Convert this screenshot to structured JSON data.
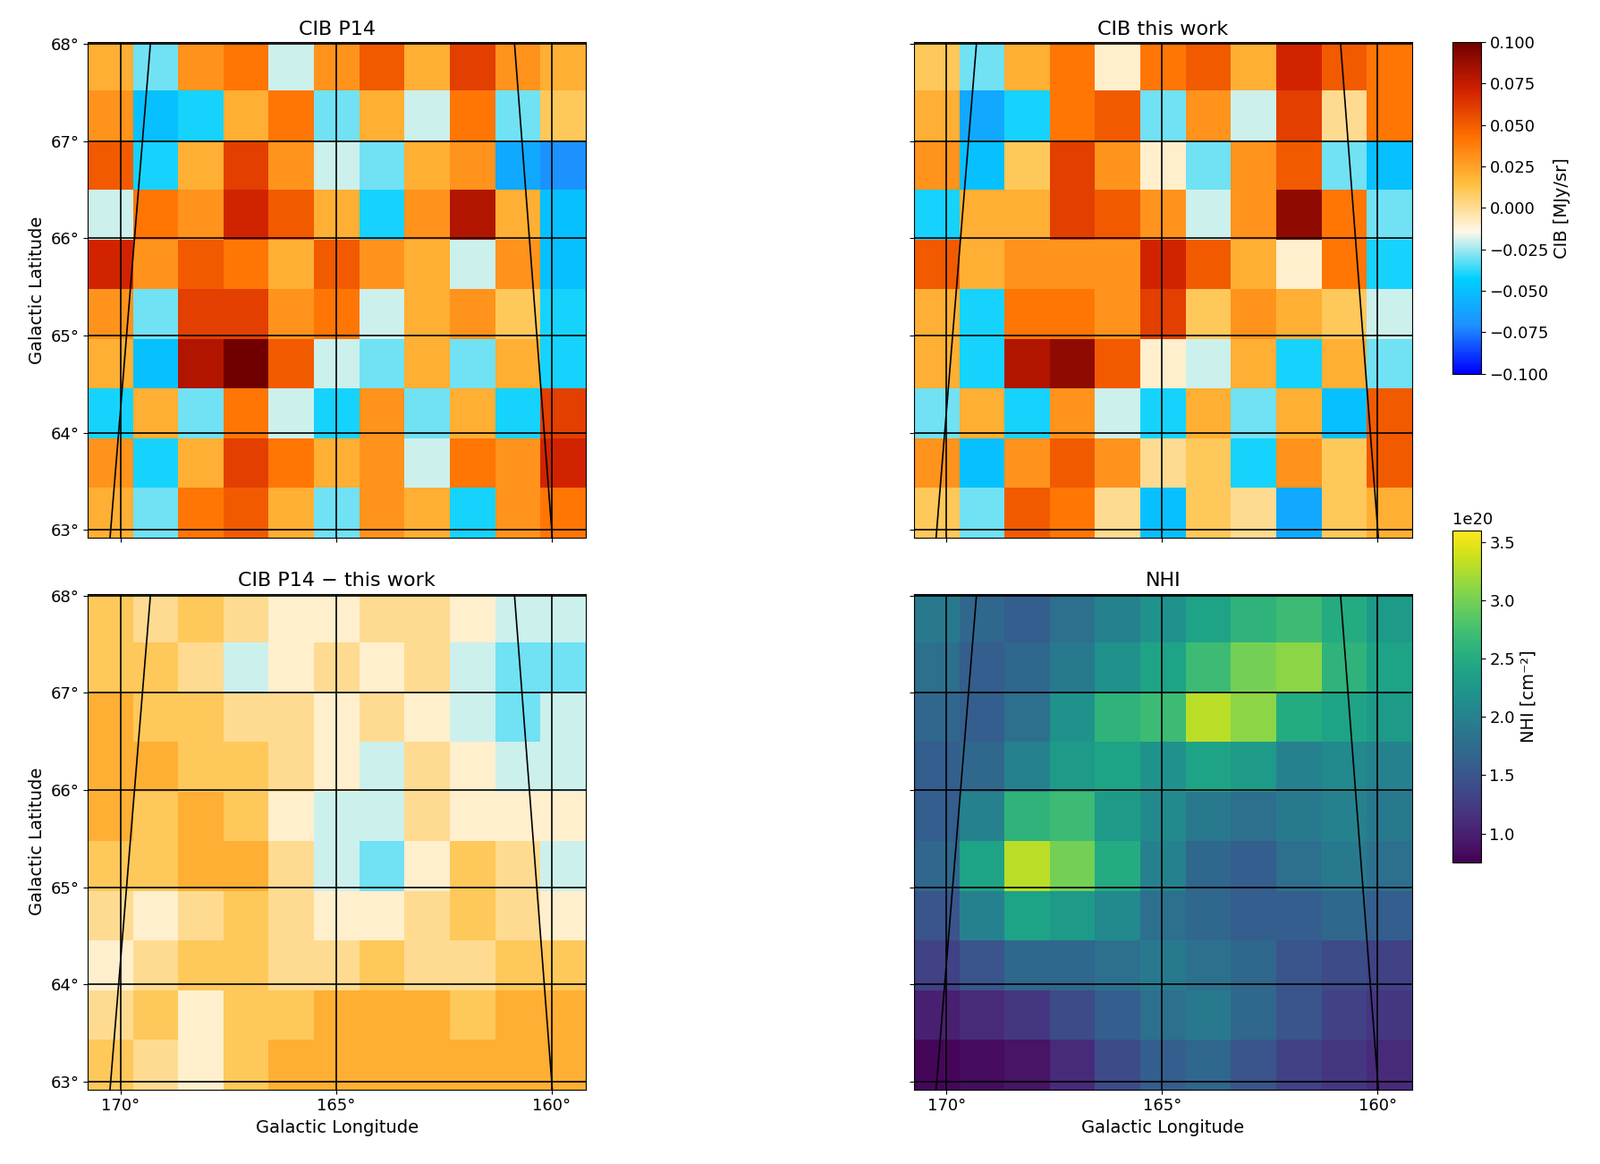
{
  "chart_data": [
    {
      "type": "heatmap",
      "title": "CIB P14",
      "ylabel": "Galactic Latitude",
      "xlim": [
        170.75,
        159.2
      ],
      "ylim": [
        62.92,
        68.02
      ],
      "xticks": [
        {
          "value": 170,
          "label": "170°"
        },
        {
          "value": 165,
          "label": "165°"
        },
        {
          "value": 160,
          "label": "160°"
        }
      ],
      "yticks": [
        {
          "value": 63,
          "label": "63°"
        },
        {
          "value": 64,
          "label": "64°"
        },
        {
          "value": 65,
          "label": "65°"
        },
        {
          "value": 66,
          "label": "66°"
        },
        {
          "value": 67,
          "label": "67°"
        },
        {
          "value": 68,
          "label": "68°"
        }
      ],
      "tick_labels": "y",
      "grid": true,
      "lines": [
        [
          [
            169.3,
            68.02
          ],
          [
            170.24,
            62.92
          ]
        ],
        [
          [
            160.86,
            68.02
          ],
          [
            159.98,
            62.92
          ]
        ]
      ],
      "color_range": [
        -0.1,
        0.1
      ],
      "cells": [
        [
          0.02,
          -0.03,
          0.03,
          0.04,
          -0.02,
          0.03,
          0.05,
          0.02,
          0.06,
          0.03,
          0.02
        ],
        [
          0.03,
          -0.05,
          -0.04,
          0.02,
          0.04,
          -0.03,
          0.02,
          -0.02,
          0.04,
          -0.03,
          0.01
        ],
        [
          0.05,
          -0.04,
          0.02,
          0.06,
          0.03,
          -0.02,
          -0.03,
          0.02,
          0.03,
          -0.06,
          -0.07
        ],
        [
          -0.02,
          0.04,
          0.03,
          0.07,
          0.05,
          0.02,
          -0.04,
          0.03,
          0.08,
          0.02,
          -0.05
        ],
        [
          0.07,
          0.03,
          0.05,
          0.04,
          0.02,
          0.05,
          0.03,
          0.02,
          -0.02,
          0.03,
          -0.05
        ],
        [
          0.03,
          -0.03,
          0.06,
          0.06,
          0.03,
          0.04,
          -0.02,
          0.02,
          0.03,
          0.01,
          -0.04
        ],
        [
          0.02,
          -0.05,
          0.08,
          0.1,
          0.05,
          -0.02,
          -0.03,
          0.02,
          -0.03,
          0.02,
          -0.04
        ],
        [
          -0.04,
          0.02,
          -0.03,
          0.04,
          -0.02,
          -0.04,
          0.03,
          -0.03,
          0.02,
          -0.04,
          0.06
        ],
        [
          0.03,
          -0.04,
          0.02,
          0.06,
          0.04,
          0.02,
          0.03,
          -0.02,
          0.04,
          0.03,
          0.07
        ],
        [
          0.02,
          -0.03,
          0.04,
          0.05,
          0.02,
          -0.03,
          0.03,
          0.02,
          -0.04,
          0.03,
          0.04
        ]
      ]
    },
    {
      "type": "heatmap",
      "title": "CIB this work",
      "xlim": [
        170.75,
        159.2
      ],
      "ylim": [
        62.92,
        68.02
      ],
      "xticks": [
        170,
        165,
        160
      ],
      "yticks": [
        63,
        64,
        65,
        66,
        67,
        68
      ],
      "tick_labels": false,
      "grid": true,
      "lines": [
        [
          [
            169.3,
            68.02
          ],
          [
            170.24,
            62.92
          ]
        ],
        [
          [
            160.86,
            68.02
          ],
          [
            159.98,
            62.92
          ]
        ]
      ],
      "colorbar": {
        "label": "CIB [MJy/sr]",
        "range": [
          -0.1,
          0.1
        ],
        "ticks": [
          {
            "value": -0.1,
            "label": "−0.100"
          },
          {
            "value": -0.075,
            "label": "−0.075"
          },
          {
            "value": -0.05,
            "label": "−0.050"
          },
          {
            "value": -0.025,
            "label": "−0.025"
          },
          {
            "value": 0,
            "label": "0.000"
          },
          {
            "value": 0.025,
            "label": "0.025"
          },
          {
            "value": 0.05,
            "label": "0.050"
          },
          {
            "value": 0.075,
            "label": "0.075"
          },
          {
            "value": 0.1,
            "label": "0.100"
          }
        ]
      },
      "cells": [
        [
          0.01,
          -0.03,
          0.02,
          0.04,
          -0.01,
          0.04,
          0.05,
          0.02,
          0.07,
          0.05,
          0.04
        ],
        [
          0.02,
          -0.06,
          -0.04,
          0.04,
          0.05,
          -0.03,
          0.03,
          -0.02,
          0.06,
          0.0,
          0.04
        ],
        [
          0.03,
          -0.05,
          0.01,
          0.06,
          0.03,
          -0.01,
          -0.03,
          0.03,
          0.05,
          -0.03,
          -0.05
        ],
        [
          -0.04,
          0.02,
          0.02,
          0.06,
          0.05,
          0.03,
          -0.02,
          0.03,
          0.09,
          0.04,
          -0.03
        ],
        [
          0.05,
          0.02,
          0.03,
          0.03,
          0.03,
          0.07,
          0.05,
          0.02,
          -0.01,
          0.04,
          -0.04
        ],
        [
          0.02,
          -0.04,
          0.04,
          0.04,
          0.03,
          0.06,
          0.01,
          0.03,
          0.02,
          0.01,
          -0.02
        ],
        [
          0.02,
          -0.04,
          0.08,
          0.09,
          0.05,
          -0.01,
          -0.02,
          0.02,
          -0.04,
          0.02,
          -0.03
        ],
        [
          -0.03,
          0.02,
          -0.04,
          0.03,
          -0.02,
          -0.04,
          0.02,
          -0.03,
          0.02,
          -0.05,
          0.05
        ],
        [
          0.03,
          -0.05,
          0.03,
          0.05,
          0.03,
          0.0,
          0.01,
          -0.04,
          0.03,
          0.01,
          0.05
        ],
        [
          0.01,
          -0.03,
          0.05,
          0.04,
          0.0,
          -0.05,
          0.01,
          0.0,
          -0.06,
          0.01,
          0.02
        ]
      ]
    },
    {
      "type": "heatmap",
      "title": "CIB P14 − this work",
      "xlabel": "Galactic Longitude",
      "ylabel": "Galactic Latitude",
      "xlim": [
        170.75,
        159.2
      ],
      "ylim": [
        62.92,
        68.02
      ],
      "xticks": [
        {
          "value": 170,
          "label": "170°"
        },
        {
          "value": 165,
          "label": "165°"
        },
        {
          "value": 160,
          "label": "160°"
        }
      ],
      "yticks": [
        {
          "value": 63,
          "label": "63°"
        },
        {
          "value": 64,
          "label": "64°"
        },
        {
          "value": 65,
          "label": "65°"
        },
        {
          "value": 66,
          "label": "66°"
        },
        {
          "value": 67,
          "label": "67°"
        },
        {
          "value": 68,
          "label": "68°"
        }
      ],
      "tick_labels": true,
      "grid": true,
      "lines": [
        [
          [
            169.3,
            68.02
          ],
          [
            170.24,
            62.92
          ]
        ],
        [
          [
            160.86,
            68.02
          ],
          [
            159.98,
            62.92
          ]
        ]
      ],
      "color_range": [
        -0.1,
        0.1
      ],
      "cells": [
        [
          0.01,
          0.0,
          0.01,
          0.0,
          -0.01,
          -0.01,
          0.0,
          0.0,
          -0.01,
          -0.02,
          -0.02
        ],
        [
          0.01,
          0.01,
          0.0,
          -0.02,
          -0.01,
          0.0,
          -0.01,
          0.0,
          -0.02,
          -0.03,
          -0.03
        ],
        [
          0.02,
          0.01,
          0.01,
          0.0,
          0.0,
          -0.01,
          0.0,
          -0.01,
          -0.02,
          -0.03,
          -0.02
        ],
        [
          0.02,
          0.02,
          0.01,
          0.01,
          0.0,
          -0.01,
          -0.02,
          0.0,
          -0.01,
          -0.02,
          -0.02
        ],
        [
          0.02,
          0.01,
          0.02,
          0.01,
          -0.01,
          -0.02,
          -0.02,
          0.0,
          -0.01,
          -0.01,
          -0.01
        ],
        [
          0.01,
          0.01,
          0.02,
          0.02,
          0.0,
          -0.02,
          -0.03,
          -0.01,
          0.01,
          0.0,
          -0.02
        ],
        [
          0.0,
          -0.01,
          0.0,
          0.01,
          0.0,
          -0.01,
          -0.01,
          0.0,
          0.01,
          0.0,
          -0.01
        ],
        [
          -0.01,
          0.0,
          0.01,
          0.01,
          0.0,
          0.0,
          0.01,
          0.0,
          0.0,
          0.01,
          0.01
        ],
        [
          0.0,
          0.01,
          -0.01,
          0.01,
          0.01,
          0.02,
          0.02,
          0.02,
          0.01,
          0.02,
          0.02
        ],
        [
          0.01,
          0.0,
          -0.01,
          0.01,
          0.02,
          0.02,
          0.02,
          0.02,
          0.02,
          0.02,
          0.02
        ]
      ]
    },
    {
      "type": "heatmap",
      "title": "NHI",
      "xlabel": "Galactic Longitude",
      "xlim": [
        170.75,
        159.2
      ],
      "ylim": [
        62.92,
        68.02
      ],
      "xticks": [
        {
          "value": 170,
          "label": "170°"
        },
        {
          "value": 165,
          "label": "165°"
        },
        {
          "value": 160,
          "label": "160°"
        }
      ],
      "yticks": [
        63,
        64,
        65,
        66,
        67,
        68
      ],
      "tick_labels": "x",
      "grid": true,
      "lines": [
        [
          [
            169.3,
            68.02
          ],
          [
            170.24,
            62.92
          ]
        ],
        [
          [
            160.86,
            68.02
          ],
          [
            159.98,
            62.92
          ]
        ]
      ],
      "colorbar": {
        "label": "NHI [cm⁻²]",
        "multiplier_label": "1e20",
        "range": [
          7.5e+19,
          3.6e+20
        ],
        "ticks": [
          {
            "value": 1e+20,
            "label": "1.0"
          },
          {
            "value": 1.5e+20,
            "label": "1.5"
          },
          {
            "value": 2e+20,
            "label": "2.0"
          },
          {
            "value": 2.5e+20,
            "label": "2.5"
          },
          {
            "value": 3e+20,
            "label": "3.0"
          },
          {
            "value": 3.5e+20,
            "label": "3.5"
          }
        ]
      },
      "cells": [
        [
          1.9e+20,
          1.7e+20,
          1.6e+20,
          1.8e+20,
          2e+20,
          2.2e+20,
          2.4e+20,
          2.6e+20,
          2.7e+20,
          2.5e+20,
          2.3e+20
        ],
        [
          1.8e+20,
          1.6e+20,
          1.7e+20,
          1.9e+20,
          2.2e+20,
          2.4e+20,
          2.7e+20,
          3e+20,
          3.1e+20,
          2.6e+20,
          2.4e+20
        ],
        [
          1.7e+20,
          1.6e+20,
          1.8e+20,
          2.2e+20,
          2.6e+20,
          2.7e+20,
          3.3e+20,
          3.1e+20,
          2.5e+20,
          2.4e+20,
          2.3e+20
        ],
        [
          1.6e+20,
          1.7e+20,
          2e+20,
          2.3e+20,
          2.4e+20,
          2.2e+20,
          2.4e+20,
          2.3e+20,
          2e+20,
          2.1e+20,
          2e+20
        ],
        [
          1.6e+20,
          2e+20,
          2.6e+20,
          2.7e+20,
          2.3e+20,
          2.1e+20,
          1.9e+20,
          1.8e+20,
          1.9e+20,
          2e+20,
          1.9e+20
        ],
        [
          1.7e+20,
          2.4e+20,
          3.3e+20,
          3e+20,
          2.5e+20,
          2e+20,
          1.7e+20,
          1.6e+20,
          1.8e+20,
          1.9e+20,
          1.8e+20
        ],
        [
          1.5e+20,
          2e+20,
          2.4e+20,
          2.3e+20,
          2.1e+20,
          1.8e+20,
          1.7e+20,
          1.6e+20,
          1.6e+20,
          1.7e+20,
          1.6e+20
        ],
        [
          1.3e+20,
          1.5e+20,
          1.7e+20,
          1.7e+20,
          1.8e+20,
          1.9e+20,
          1.8e+20,
          1.7e+20,
          1.5e+20,
          1.4e+20,
          1.3e+20
        ],
        [
          1e+20,
          1.1e+20,
          1.2e+20,
          1.4e+20,
          1.6e+20,
          1.8e+20,
          1.9e+20,
          1.7e+20,
          1.5e+20,
          1.3e+20,
          1.2e+20
        ],
        [
          8e+19,
          8.5e+19,
          9e+19,
          1.1e+20,
          1.4e+20,
          1.6e+20,
          1.7e+20,
          1.5e+20,
          1.3e+20,
          1.2e+20,
          1.1e+20
        ]
      ]
    }
  ]
}
